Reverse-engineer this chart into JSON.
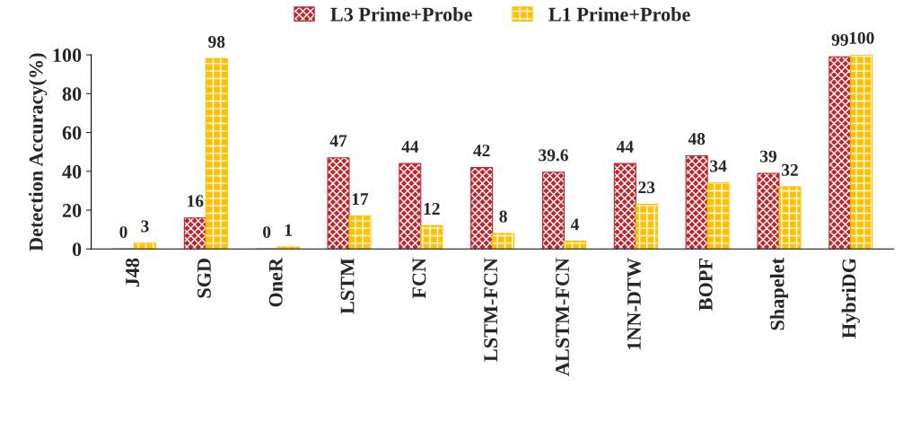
{
  "chart_data": {
    "type": "bar",
    "ylabel": "Detection Accuracy(%)",
    "categories": [
      "J48",
      "SGD",
      "OneR",
      "LSTM",
      "FCN",
      "LSTM-FCN",
      "ALSTM-FCN",
      "1NN-DTW",
      "BOPF",
      "Shapelet",
      "HybriDG"
    ],
    "series": [
      {
        "name": "L3 Prime+Probe",
        "color": "#c0262d",
        "values": [
          0,
          16,
          0,
          47,
          44,
          42,
          39.6,
          44,
          48,
          39,
          99
        ]
      },
      {
        "name": "L1 Prime+Probe",
        "color": "#ffc000",
        "values": [
          3,
          98,
          1,
          17,
          12,
          8,
          4,
          23,
          34,
          32,
          100
        ]
      }
    ],
    "ylim": [
      0,
      100
    ],
    "yticks": [
      0,
      20,
      40,
      60,
      80,
      100
    ],
    "grid": false,
    "legend": "top",
    "data_labels": true
  }
}
